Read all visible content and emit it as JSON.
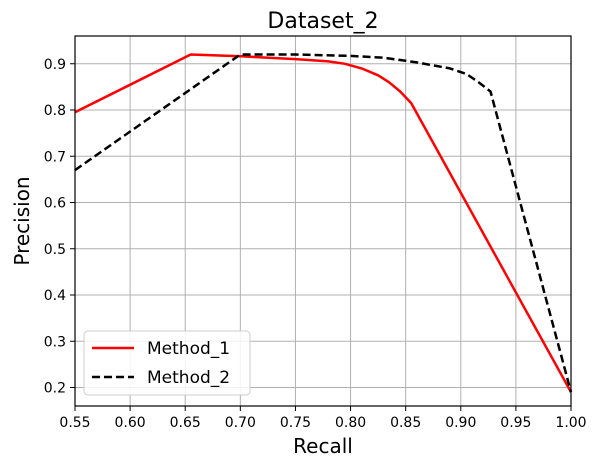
{
  "chart_data": {
    "type": "line",
    "title": "Dataset_2",
    "xlabel": "Recall",
    "ylabel": "Precision",
    "xlim": [
      0.55,
      1.0
    ],
    "ylim": [
      0.16,
      0.96
    ],
    "grid": true,
    "legend_position": "lower-left",
    "xticks": [
      "0.55",
      "0.60",
      "0.65",
      "0.70",
      "0.75",
      "0.80",
      "0.85",
      "0.90",
      "0.95",
      "1.00"
    ],
    "yticks": [
      "0.2",
      "0.3",
      "0.4",
      "0.5",
      "0.6",
      "0.7",
      "0.8",
      "0.9"
    ],
    "series": [
      {
        "name": "Method_1",
        "color": "#ff0000",
        "style": "solid",
        "x": [
          0.55,
          0.655,
          0.7,
          0.75,
          0.78,
          0.795,
          0.81,
          0.825,
          0.835,
          0.845,
          0.855,
          1.0
        ],
        "y": [
          0.795,
          0.92,
          0.916,
          0.91,
          0.905,
          0.9,
          0.89,
          0.875,
          0.86,
          0.84,
          0.815,
          0.19
        ]
      },
      {
        "name": "Method_2",
        "color": "#000000",
        "style": "dashed",
        "x": [
          0.55,
          0.7,
          0.75,
          0.8,
          0.83,
          0.86,
          0.89,
          0.905,
          0.915,
          0.927,
          1.0
        ],
        "y": [
          0.67,
          0.92,
          0.92,
          0.917,
          0.913,
          0.903,
          0.89,
          0.878,
          0.862,
          0.84,
          0.19
        ]
      }
    ]
  }
}
